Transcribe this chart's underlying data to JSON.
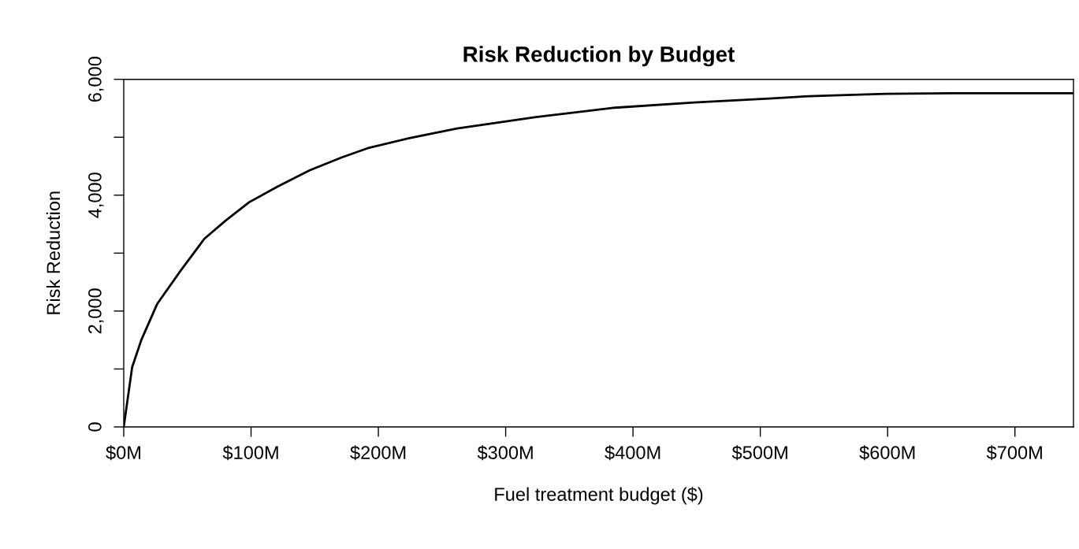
{
  "chart_data": {
    "type": "line",
    "title": "Risk Reduction by Budget",
    "xlabel": "Fuel treatment budget ($)",
    "ylabel": "Risk Reduction",
    "x": [
      0,
      6.6,
      13.8,
      26.2,
      44.8,
      63.4,
      80,
      98.6,
      121,
      146,
      171,
      191.5,
      223.6,
      261.8,
      323.8,
      385.8,
      447.8,
      509.8,
      538.7,
      567.6,
      598.5,
      650.3,
      746
    ],
    "series": [
      {
        "color": "#000000",
        "values": [
          0,
          1030,
          1500,
          2120,
          2700,
          3250,
          3560,
          3880,
          4150,
          4430,
          4650,
          4810,
          4980,
          5150,
          5350,
          5510,
          5600,
          5670,
          5710,
          5730,
          5750,
          5760,
          5760
        ]
      }
    ],
    "xlim": [
      0,
      746
    ],
    "ylim": [
      0,
      6000
    ],
    "xticks": [
      {
        "value": 0,
        "label": "$0M"
      },
      {
        "value": 100,
        "label": "$100M"
      },
      {
        "value": 200,
        "label": "$200M"
      },
      {
        "value": 300,
        "label": "$300M"
      },
      {
        "value": 400,
        "label": "$400M"
      },
      {
        "value": 500,
        "label": "$500M"
      },
      {
        "value": 600,
        "label": "$600M"
      },
      {
        "value": 700,
        "label": "$700M"
      }
    ],
    "yticks": [
      {
        "value": 0,
        "label": "0"
      },
      {
        "value": 1000,
        "label": null
      },
      {
        "value": 2000,
        "label": "2,000"
      },
      {
        "value": 3000,
        "label": null
      },
      {
        "value": 4000,
        "label": "4,000"
      },
      {
        "value": 5000,
        "label": null
      },
      {
        "value": 6000,
        "label": "6,000"
      }
    ],
    "grid": false,
    "line_style": "solid"
  }
}
